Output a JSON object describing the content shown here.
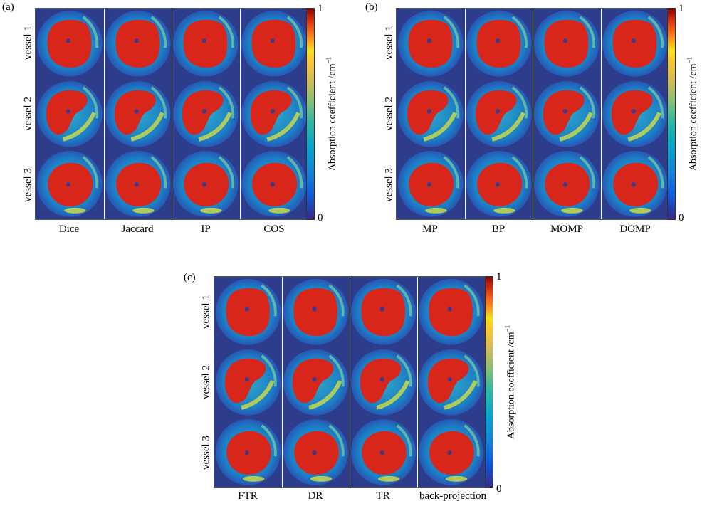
{
  "panels": [
    {
      "label": "(a)",
      "rows": [
        "vessel 1",
        "vessel 2",
        "vessel 3"
      ],
      "columns": [
        "Dice",
        "Jaccard",
        "IP",
        "COS"
      ],
      "colorbar": {
        "min": "0",
        "max": "1",
        "title": "Absorption coefficient /cm",
        "title_unit_sup": "−1"
      }
    },
    {
      "label": "(b)",
      "rows": [
        "vessel 1",
        "vessel 2",
        "vessel 3"
      ],
      "columns": [
        "MP",
        "BP",
        "MOMP",
        "DOMP"
      ],
      "colorbar": {
        "min": "0",
        "max": "1",
        "title": "Absorption coefficient /cm",
        "title_unit_sup": "−1"
      }
    },
    {
      "label": "(c)",
      "rows": [
        "vessel 1",
        "vessel 2",
        "vessel 3"
      ],
      "columns": [
        "FTR",
        "DR",
        "TR",
        "back-projection"
      ],
      "colorbar": {
        "min": "0",
        "max": "1",
        "title": "Absorption coefficient /cm",
        "title_unit_sup": "−1"
      }
    }
  ],
  "colors": {
    "background": "#2d3d8c",
    "ring": "#1e90c8",
    "vessel": "#d8261a",
    "core": "#3a3a8c",
    "highlight": "#c8d84a"
  }
}
